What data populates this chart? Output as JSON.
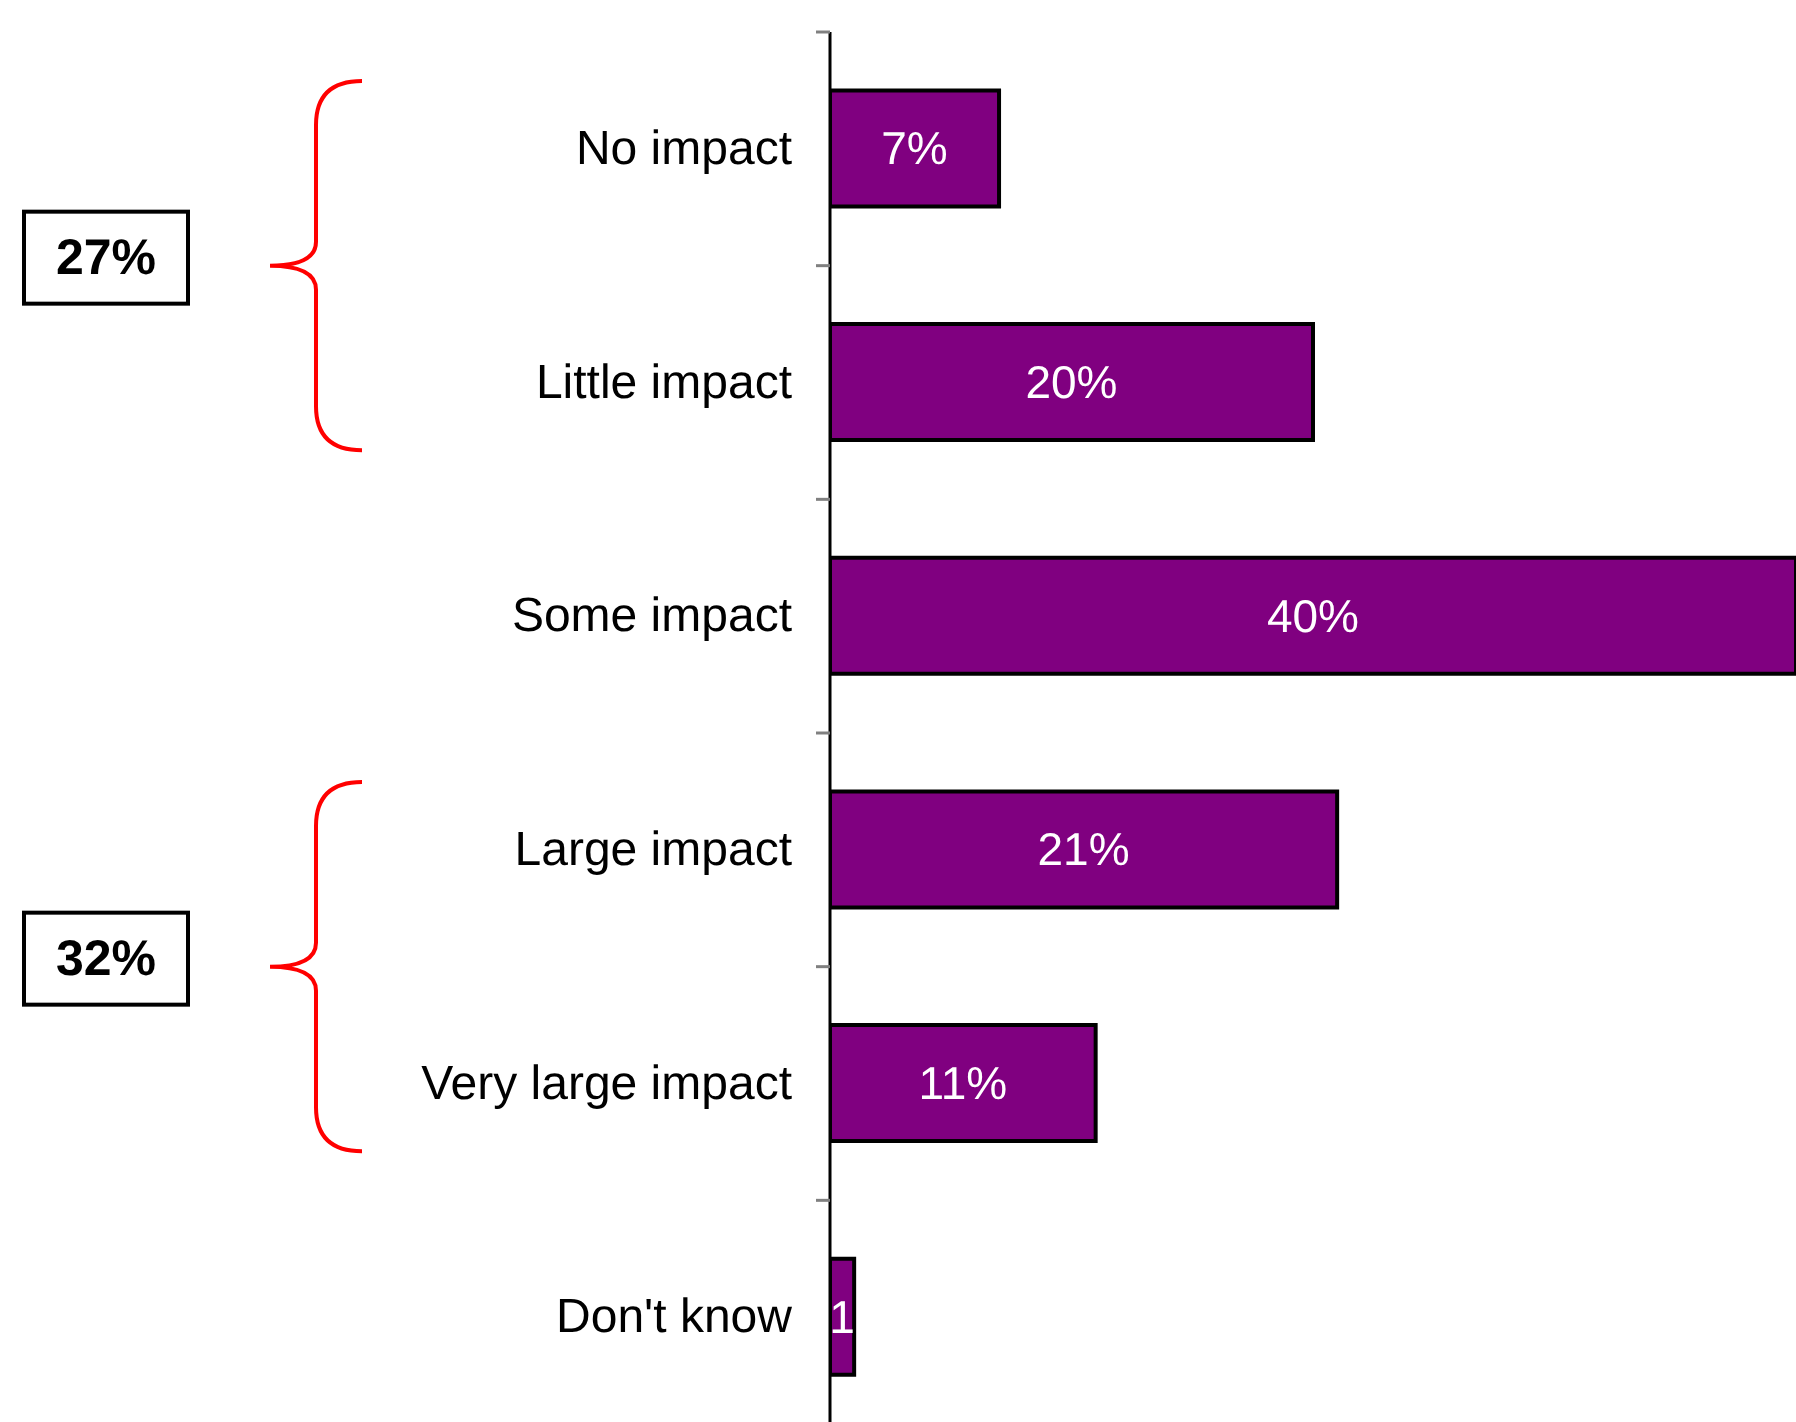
{
  "chart_data": {
    "type": "bar",
    "orientation": "horizontal",
    "categories": [
      "No impact",
      "Little impact",
      "Some impact",
      "Large impact",
      "Very large impact",
      "Don't know"
    ],
    "values": [
      7,
      20,
      40,
      21,
      11,
      1
    ],
    "color": "#800080",
    "value_labels": [
      "7%",
      "20%",
      "40%",
      "21%",
      "11%",
      "1"
    ],
    "annotations": [
      "27%",
      "32%"
    ]
  }
}
